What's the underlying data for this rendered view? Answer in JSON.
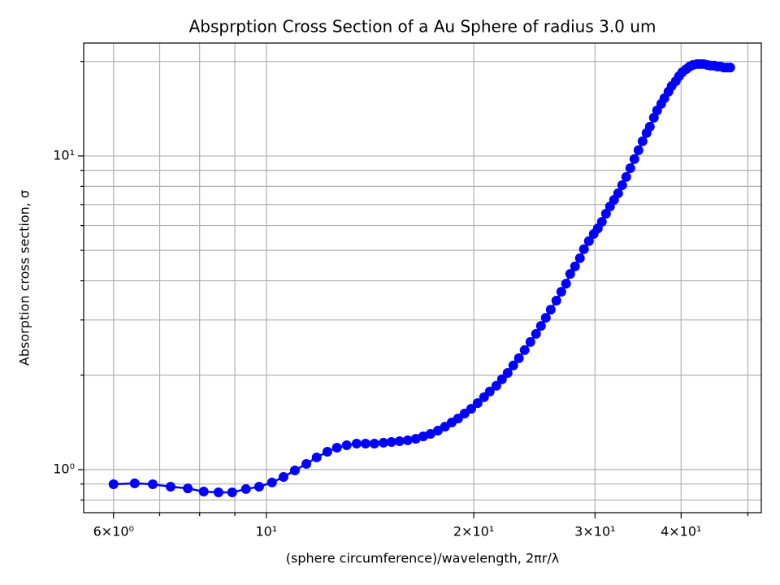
{
  "chart_data": {
    "type": "line",
    "title": "Absprption Cross Section of a Au Sphere of radius 3.0 um",
    "x_label": "(sphere circumference)/wavelength, 2πr/λ",
    "y_label": "Absorption cross section, σ",
    "x_log": true,
    "y_log": true,
    "grid": true,
    "xlim": [
      5.43,
      52.3
    ],
    "ylim": [
      0.729,
      22.9
    ],
    "xticks": [
      {
        "value": 6,
        "label": "6×10⁰"
      },
      {
        "value": 10,
        "label": "10¹"
      },
      {
        "value": 20,
        "label": "2×10¹"
      },
      {
        "value": 30,
        "label": "3×10¹"
      },
      {
        "value": 40,
        "label": "4×10¹"
      }
    ],
    "xminor": [
      7,
      8,
      9,
      50
    ],
    "yticks": [
      {
        "value": 1,
        "label": "10⁰"
      },
      {
        "value": 10,
        "label": "10¹"
      }
    ],
    "yminor": [
      0.8,
      0.9,
      2,
      3,
      4,
      5,
      6,
      7,
      8,
      9,
      20
    ],
    "series": [
      {
        "color": "#0000ff",
        "x": [
          6.0,
          6.44,
          6.84,
          7.26,
          7.69,
          8.11,
          8.52,
          8.92,
          9.34,
          9.76,
          10.19,
          10.59,
          11.0,
          11.43,
          11.83,
          12.26,
          12.66,
          13.08,
          13.52,
          13.93,
          14.35,
          14.79,
          15.19,
          15.61,
          16.04,
          16.48,
          16.89,
          17.31,
          17.74,
          18.17,
          18.58,
          18.98,
          19.4,
          19.83,
          20.26,
          20.7,
          21.1,
          21.57,
          21.98,
          22.4,
          22.83,
          23.26,
          23.71,
          24.17,
          24.63,
          25.04,
          25.45,
          25.87,
          26.36,
          26.8,
          27.23,
          27.61,
          28.06,
          28.52,
          28.91,
          29.39,
          29.87,
          30.28,
          30.69,
          31.12,
          31.54,
          31.97,
          32.41,
          32.85,
          33.3,
          33.76,
          34.22,
          34.69,
          35.16,
          35.64,
          36.03,
          36.52,
          36.92,
          37.43,
          37.83,
          38.35,
          38.76,
          39.29,
          39.72,
          40.16,
          40.71,
          41.15,
          41.6,
          42.17,
          42.63,
          43.1,
          43.69,
          44.16,
          44.66,
          45.14,
          45.63,
          46.13,
          46.63,
          47.13
        ],
        "values": [
          0.898,
          0.904,
          0.898,
          0.882,
          0.871,
          0.851,
          0.846,
          0.846,
          0.867,
          0.882,
          0.91,
          0.948,
          0.994,
          1.043,
          1.094,
          1.14,
          1.175,
          1.196,
          1.21,
          1.21,
          1.21,
          1.218,
          1.225,
          1.232,
          1.24,
          1.254,
          1.276,
          1.3,
          1.331,
          1.371,
          1.413,
          1.455,
          1.509,
          1.563,
          1.63,
          1.702,
          1.774,
          1.851,
          1.941,
          2.033,
          2.148,
          2.265,
          2.404,
          2.553,
          2.71,
          2.872,
          3.048,
          3.236,
          3.457,
          3.69,
          3.917,
          4.207,
          4.446,
          4.721,
          5.045,
          5.35,
          5.641,
          5.875,
          6.166,
          6.546,
          6.902,
          7.245,
          7.603,
          8.072,
          8.57,
          9.141,
          9.772,
          10.43,
          11.14,
          11.83,
          12.4,
          13.24,
          13.97,
          14.66,
          15.28,
          16.03,
          16.71,
          17.3,
          17.95,
          18.49,
          18.92,
          19.28,
          19.5,
          19.63,
          19.63,
          19.63,
          19.5,
          19.41,
          19.41,
          19.28,
          19.28,
          19.14,
          19.14,
          19.14
        ]
      }
    ]
  }
}
